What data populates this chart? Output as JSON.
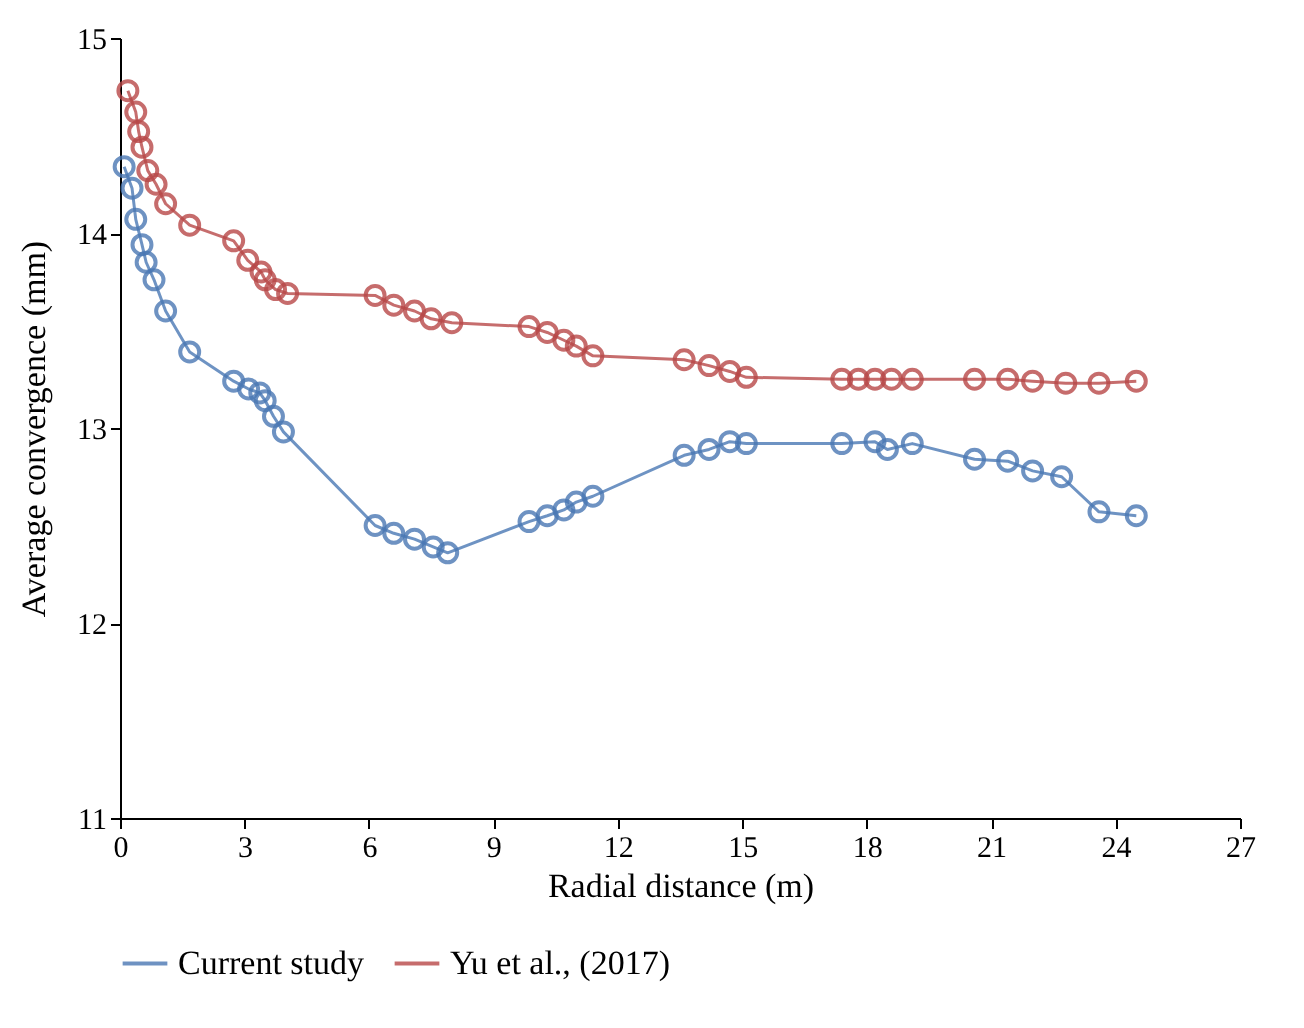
{
  "chart_data": {
    "type": "line",
    "xlabel": "Radial distance (m)",
    "ylabel": "Average convergence (mm)",
    "xlim": [
      0,
      27
    ],
    "xticks": [
      0,
      3,
      6,
      9,
      12,
      15,
      18,
      21,
      24,
      27
    ],
    "ylim": [
      11,
      15
    ],
    "yticks": [
      11,
      12,
      13,
      14,
      15
    ],
    "grid": false,
    "legend": "bottom",
    "marker": "circle",
    "line_style": "solid",
    "series": [
      {
        "name": "Current study",
        "color": "#4a78b4",
        "x": [
          0.1,
          0.29,
          0.38,
          0.53,
          0.63,
          0.82,
          1.1,
          1.68,
          2.74,
          3.1,
          3.37,
          3.5,
          3.7,
          3.94,
          6.15,
          6.6,
          7.1,
          7.55,
          7.9,
          9.86,
          10.3,
          10.7,
          11.0,
          11.4,
          13.6,
          14.2,
          14.7,
          15.1,
          17.4,
          18.2,
          18.5,
          19.1,
          20.6,
          21.4,
          22.0,
          22.7,
          23.6,
          24.5
        ],
        "values": [
          14.34,
          14.23,
          14.07,
          13.94,
          13.85,
          13.76,
          13.6,
          13.39,
          13.24,
          13.2,
          13.18,
          13.14,
          13.06,
          12.98,
          12.5,
          12.46,
          12.43,
          12.39,
          12.36,
          12.52,
          12.55,
          12.58,
          12.62,
          12.65,
          12.86,
          12.89,
          12.93,
          12.92,
          12.92,
          12.93,
          12.89,
          12.92,
          12.84,
          12.83,
          12.78,
          12.75,
          12.57,
          12.55
        ]
      },
      {
        "name": "Yu et al., (2017)",
        "color": "#b84848",
        "x": [
          0.19,
          0.38,
          0.45,
          0.53,
          0.67,
          0.87,
          1.1,
          1.68,
          2.74,
          3.08,
          3.4,
          3.5,
          3.75,
          4.04,
          6.15,
          6.6,
          7.1,
          7.5,
          8.0,
          9.86,
          10.3,
          10.7,
          11.0,
          11.4,
          13.6,
          14.2,
          14.7,
          15.1,
          17.4,
          17.8,
          18.2,
          18.6,
          19.1,
          20.6,
          21.4,
          22.0,
          22.8,
          23.6,
          24.5
        ],
        "values": [
          14.73,
          14.62,
          14.52,
          14.44,
          14.32,
          14.25,
          14.15,
          14.04,
          13.96,
          13.86,
          13.8,
          13.76,
          13.71,
          13.69,
          13.68,
          13.63,
          13.6,
          13.56,
          13.54,
          13.52,
          13.49,
          13.45,
          13.42,
          13.37,
          13.35,
          13.32,
          13.29,
          13.26,
          13.25,
          13.25,
          13.25,
          13.25,
          13.25,
          13.25,
          13.25,
          13.24,
          13.23,
          13.23,
          13.24
        ]
      }
    ]
  }
}
